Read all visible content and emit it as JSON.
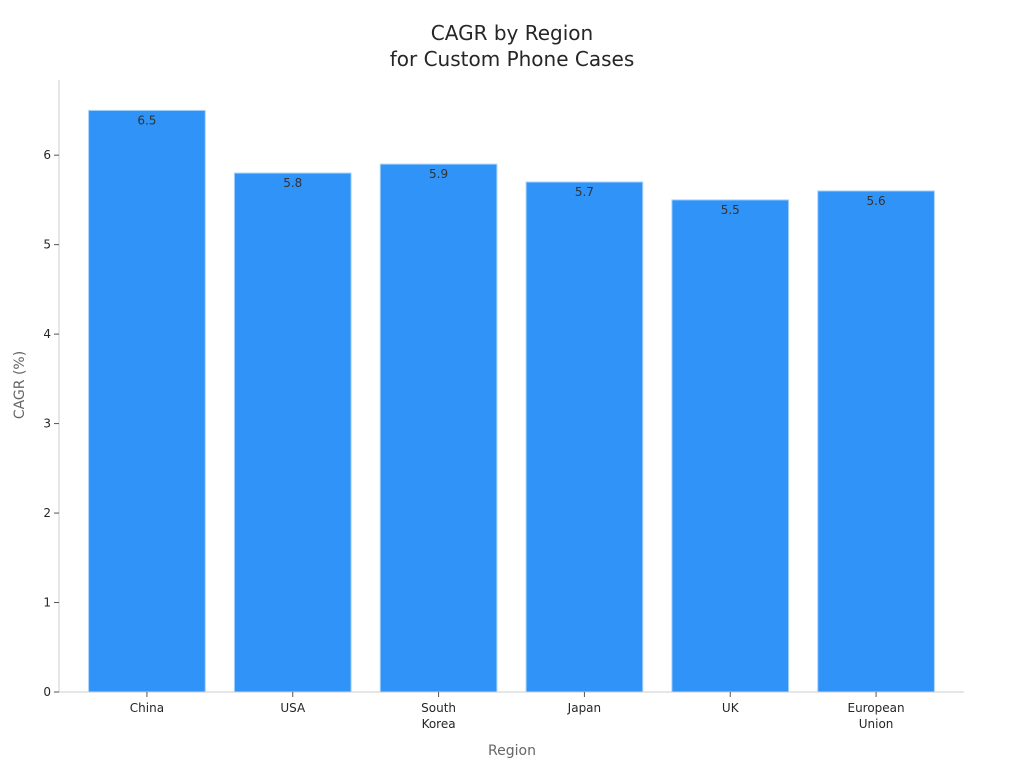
{
  "chart_data": {
    "type": "bar",
    "title": [
      "CAGR by Region",
      "for Custom Phone Cases"
    ],
    "xlabel": "Region",
    "ylabel": "CAGR (%)",
    "categories": [
      [
        "China"
      ],
      [
        "USA"
      ],
      [
        "South",
        "Korea"
      ],
      [
        "Japan"
      ],
      [
        "UK"
      ],
      [
        "European",
        "Union"
      ]
    ],
    "values": [
      6.5,
      5.8,
      5.9,
      5.7,
      5.5,
      5.6
    ],
    "data_labels": [
      "6.5",
      "5.8",
      "5.9",
      "5.7",
      "5.5",
      "5.6"
    ],
    "yticks": [
      0,
      1,
      2,
      3,
      4,
      5,
      6
    ],
    "ylim": [
      0,
      6.84
    ],
    "grid": false,
    "legend": "none",
    "colors": {
      "bar": "#2f93f8",
      "bar_edge": "#a8d2fb"
    }
  }
}
